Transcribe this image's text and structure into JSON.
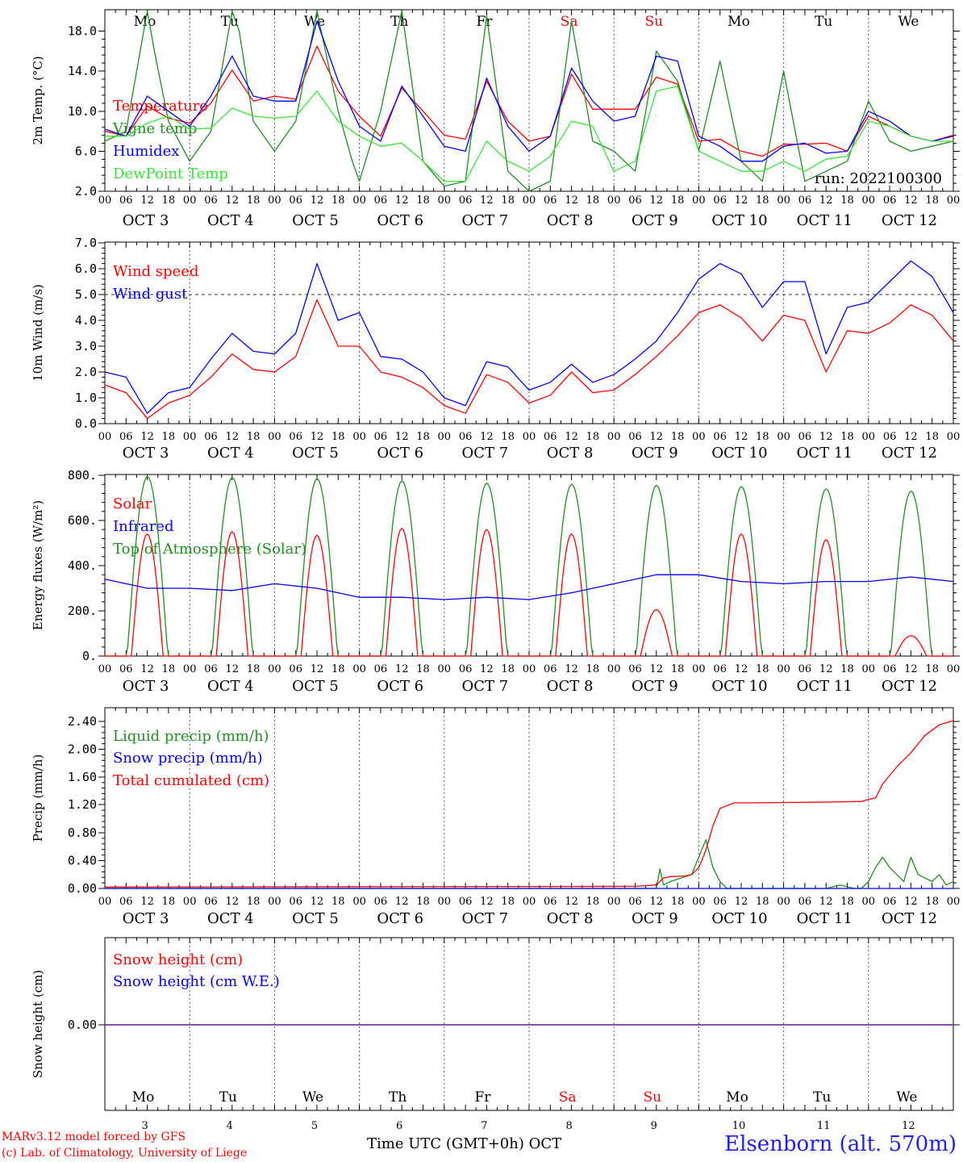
{
  "chart_data": [
    {
      "type": "line",
      "id": "temp",
      "ylabel": "2m Temp. (°C)",
      "yticks": [
        "2.0",
        "6.0",
        "10.0",
        "14.0",
        "18.0"
      ],
      "ylim": [
        2,
        20
      ],
      "annotation": "run: 2022100300",
      "grid": "vertical day separators (dotted)",
      "legend_position": "left",
      "x_unit": "hours from OCT 3 00 UTC",
      "series": [
        {
          "name": "Temperature",
          "color": "#ff0000",
          "x": [
            0,
            6,
            12,
            18,
            24,
            30,
            36,
            42,
            48,
            54,
            60,
            66,
            72,
            78,
            84,
            90,
            96,
            102,
            108,
            114,
            120,
            126,
            132,
            138,
            144,
            150,
            156,
            162,
            168,
            174,
            180,
            186,
            192,
            198,
            204,
            210,
            216,
            222,
            228,
            234,
            240
          ],
          "values": [
            8,
            7.5,
            10.5,
            9.3,
            8.8,
            10.8,
            14.1,
            11,
            11.5,
            11.2,
            16.5,
            12,
            9.5,
            7.5,
            12.3,
            10,
            7.6,
            7.2,
            13,
            9,
            7,
            7.5,
            13.7,
            10.2,
            10.2,
            10.2,
            13.4,
            12.7,
            7,
            7.2,
            6,
            5.5,
            6.7,
            6.7,
            6.8,
            6,
            9.5,
            8.5,
            7.5,
            7,
            7.6
          ]
        },
        {
          "name": "Vigne temp",
          "color": "#1f8f1f",
          "x": [
            0,
            6,
            12,
            14,
            18,
            24,
            30,
            36,
            38,
            42,
            48,
            54,
            60,
            66,
            70,
            72,
            78,
            84,
            90,
            96,
            102,
            108,
            114,
            120,
            126,
            132,
            138,
            144,
            150,
            156,
            162,
            168,
            174,
            180,
            186,
            192,
            198,
            204,
            210,
            216,
            222,
            228,
            234,
            240
          ],
          "values": [
            7,
            8,
            20,
            16,
            9,
            5,
            8,
            20,
            18,
            9,
            6,
            9,
            20,
            10,
            5,
            3,
            10,
            20,
            5,
            2.5,
            3,
            19.5,
            4,
            2,
            3,
            19,
            7,
            6,
            4,
            16,
            13,
            6,
            15,
            5,
            3,
            14,
            3,
            4,
            5,
            11,
            7,
            6,
            6.5,
            7
          ]
        },
        {
          "name": "Humidex",
          "color": "#0000ff",
          "x": [
            0,
            6,
            12,
            18,
            24,
            30,
            36,
            42,
            48,
            54,
            60,
            66,
            72,
            78,
            84,
            90,
            96,
            102,
            108,
            114,
            120,
            126,
            132,
            138,
            144,
            150,
            156,
            162,
            168,
            174,
            180,
            186,
            192,
            198,
            204,
            210,
            216,
            222,
            228,
            234,
            240
          ],
          "values": [
            8.2,
            7.5,
            11.5,
            10,
            8.5,
            11.5,
            15.5,
            11.5,
            11,
            11,
            19,
            13,
            8.5,
            7,
            12.5,
            9.5,
            6.5,
            6,
            13.3,
            8.5,
            6,
            7.5,
            14.3,
            11,
            9,
            9.5,
            15.5,
            15,
            7.5,
            6.5,
            5,
            5,
            6.5,
            6.8,
            5.8,
            6,
            10,
            9,
            7.5,
            7,
            7.5
          ]
        },
        {
          "name": "DewPoint Temp",
          "color": "#33e633",
          "x": [
            0,
            6,
            12,
            18,
            24,
            30,
            36,
            42,
            48,
            54,
            60,
            66,
            72,
            78,
            84,
            90,
            96,
            102,
            108,
            114,
            120,
            126,
            132,
            138,
            144,
            150,
            156,
            162,
            168,
            174,
            180,
            186,
            192,
            198,
            204,
            210,
            216,
            222,
            228,
            234,
            240
          ],
          "values": [
            7.5,
            7.5,
            8.8,
            9.5,
            8.2,
            8.3,
            10.3,
            9.5,
            9.3,
            9.5,
            12,
            9,
            7.5,
            6.5,
            6.8,
            5,
            3,
            3,
            7,
            5,
            4,
            5.5,
            9,
            8.5,
            4,
            5,
            12,
            12.5,
            6,
            5,
            4,
            4,
            5,
            4,
            5.2,
            5.5,
            9,
            8.5,
            7.5,
            7,
            7
          ]
        }
      ]
    },
    {
      "type": "line",
      "id": "wind",
      "ylabel": "10m Wind (m/s)",
      "yticks": [
        "0.0",
        "1.0",
        "2.0",
        "3.0",
        "4.0",
        "5.0",
        "6.0",
        "7.0"
      ],
      "ylim": [
        0,
        7
      ],
      "reference_line": 5.0,
      "legend_position": "left",
      "series": [
        {
          "name": "Wind speed",
          "color": "#ff0000",
          "x": [
            0,
            6,
            12,
            18,
            24,
            30,
            36,
            42,
            48,
            54,
            60,
            66,
            72,
            78,
            84,
            90,
            96,
            102,
            108,
            114,
            120,
            126,
            132,
            138,
            144,
            150,
            156,
            162,
            168,
            174,
            180,
            186,
            192,
            198,
            204,
            210,
            216,
            222,
            228,
            234,
            240
          ],
          "values": [
            1.5,
            1.2,
            0.2,
            0.8,
            1.1,
            1.8,
            2.7,
            2.1,
            2.0,
            2.6,
            4.8,
            3.0,
            3.0,
            2.0,
            1.8,
            1.4,
            0.7,
            0.4,
            1.9,
            1.6,
            0.8,
            1.1,
            2.0,
            1.2,
            1.3,
            1.9,
            2.6,
            3.4,
            4.3,
            4.6,
            4.1,
            3.2,
            4.2,
            4.0,
            2.0,
            3.6,
            3.5,
            3.9,
            4.6,
            4.2,
            3.2
          ]
        },
        {
          "name": "Wind gust",
          "color": "#0000ff",
          "x": [
            0,
            6,
            12,
            18,
            24,
            30,
            36,
            42,
            48,
            54,
            60,
            66,
            72,
            78,
            84,
            90,
            96,
            102,
            108,
            114,
            120,
            126,
            132,
            138,
            144,
            150,
            156,
            162,
            168,
            174,
            180,
            186,
            192,
            198,
            204,
            210,
            216,
            222,
            228,
            234,
            240
          ],
          "values": [
            2.0,
            1.8,
            0.4,
            1.2,
            1.4,
            2.5,
            3.5,
            2.8,
            2.7,
            3.5,
            6.2,
            4.0,
            4.3,
            2.6,
            2.5,
            2.0,
            1.0,
            0.7,
            2.4,
            2.2,
            1.3,
            1.6,
            2.3,
            1.6,
            1.9,
            2.5,
            3.2,
            4.3,
            5.6,
            6.2,
            5.8,
            4.5,
            5.5,
            5.5,
            2.7,
            4.5,
            4.7,
            5.5,
            6.3,
            5.7,
            4.3
          ]
        }
      ]
    },
    {
      "type": "line",
      "id": "energy",
      "ylabel": "Energy fluxes (W/m²)",
      "yticks": [
        "0.",
        "200.",
        "400.",
        "600.",
        "800."
      ],
      "ylim": [
        0,
        800
      ],
      "legend_position": "left",
      "series": [
        {
          "name": "Solar",
          "color": "#ff0000",
          "daily_peak": [
            540,
            550,
            535,
            565,
            560,
            540,
            205,
            540,
            515,
            90
          ]
        },
        {
          "name": "Infrared",
          "color": "#0000ff",
          "x": [
            0,
            12,
            24,
            36,
            48,
            60,
            72,
            84,
            96,
            108,
            120,
            132,
            144,
            156,
            168,
            180,
            192,
            204,
            216,
            228,
            240
          ],
          "values": [
            340,
            300,
            300,
            290,
            320,
            300,
            260,
            260,
            250,
            260,
            250,
            280,
            320,
            360,
            360,
            330,
            320,
            330,
            330,
            350,
            330
          ]
        },
        {
          "name": "Top of Atmosphere (Solar)",
          "color": "#1f8f1f",
          "daily_peak": [
            795,
            790,
            785,
            775,
            765,
            760,
            755,
            750,
            740,
            730
          ]
        }
      ]
    },
    {
      "type": "line",
      "id": "precip",
      "ylabel": "Precip (mm/h)",
      "yticks": [
        "0.00",
        "0.40",
        "0.80",
        "1.20",
        "1.60",
        "2.00",
        "2.40"
      ],
      "ylim": [
        0,
        2.4
      ],
      "legend_position": "left",
      "series": [
        {
          "name": "Liquid precip (mm/h)",
          "color": "#1f8f1f",
          "x": [
            0,
            156,
            157,
            158,
            160,
            166,
            168,
            170,
            172,
            174,
            176,
            180,
            204,
            208,
            212,
            214,
            216,
            218,
            220,
            222,
            224,
            226,
            228,
            230,
            232,
            234,
            236,
            238,
            240
          ],
          "values": [
            0,
            0,
            0.28,
            0.05,
            0.1,
            0.2,
            0.45,
            0.7,
            0.3,
            0.1,
            0,
            0,
            0,
            0.05,
            0,
            0,
            0.1,
            0.3,
            0.45,
            0.3,
            0.2,
            0.1,
            0.45,
            0.2,
            0.15,
            0.1,
            0.2,
            0.05,
            0.1
          ]
        },
        {
          "name": "Snow precip (mm/h)",
          "color": "#0000ff",
          "x": [
            0,
            240
          ],
          "values": [
            0,
            0
          ]
        },
        {
          "name": "Total cumulated (cm)",
          "color": "#ff0000",
          "x": [
            0,
            150,
            156,
            158,
            160,
            164,
            166,
            168,
            170,
            172,
            174,
            178,
            184,
            204,
            214,
            216,
            218,
            220,
            224,
            228,
            232,
            236,
            240
          ],
          "values": [
            0.02,
            0.03,
            0.05,
            0.15,
            0.17,
            0.18,
            0.2,
            0.3,
            0.55,
            0.9,
            1.15,
            1.23,
            1.23,
            1.24,
            1.25,
            1.28,
            1.3,
            1.5,
            1.75,
            1.95,
            2.2,
            2.35,
            2.41
          ]
        }
      ]
    },
    {
      "type": "line",
      "id": "snow",
      "ylabel": "Snow height (cm)",
      "yticks": [
        "0.00"
      ],
      "legend_position": "left",
      "series": [
        {
          "name": "Snow height (cm)",
          "color": "#ff0000",
          "x": [
            0,
            240
          ],
          "values": [
            0,
            0
          ]
        },
        {
          "name": "Snow height (cm W.E.)",
          "color": "#0000ff",
          "x": [
            0,
            240
          ],
          "values": [
            0,
            0
          ]
        }
      ]
    }
  ],
  "days": [
    {
      "dow": "Mo",
      "date": "OCT  3",
      "num": "3",
      "color": "#000000"
    },
    {
      "dow": "Tu",
      "date": "OCT  4",
      "num": "4",
      "color": "#000000"
    },
    {
      "dow": "We",
      "date": "OCT  5",
      "num": "5",
      "color": "#000000"
    },
    {
      "dow": "Th",
      "date": "OCT  6",
      "num": "6",
      "color": "#000000"
    },
    {
      "dow": "Fr",
      "date": "OCT  7",
      "num": "7",
      "color": "#000000"
    },
    {
      "dow": "Sa",
      "date": "OCT  8",
      "num": "8",
      "color": "#ff0000"
    },
    {
      "dow": "Su",
      "date": "OCT  9",
      "num": "9",
      "color": "#ff0000"
    },
    {
      "dow": "Mo",
      "date": "OCT 10",
      "num": "10",
      "color": "#000000"
    },
    {
      "dow": "Tu",
      "date": "OCT 11",
      "num": "11",
      "color": "#000000"
    },
    {
      "dow": "We",
      "date": "OCT 12",
      "num": "12",
      "color": "#000000"
    }
  ],
  "hour_ticks": [
    "00",
    "06",
    "12",
    "18"
  ],
  "final_hour_tick": "00",
  "footer": {
    "model_line": "MARv3.12 model forced by GFS",
    "credit_line": "(c) Lab. of Climatology, University of Liege",
    "axis_label": "Time UTC (GMT+0h) OCT",
    "station": "Elsenborn (alt. 570m)"
  }
}
